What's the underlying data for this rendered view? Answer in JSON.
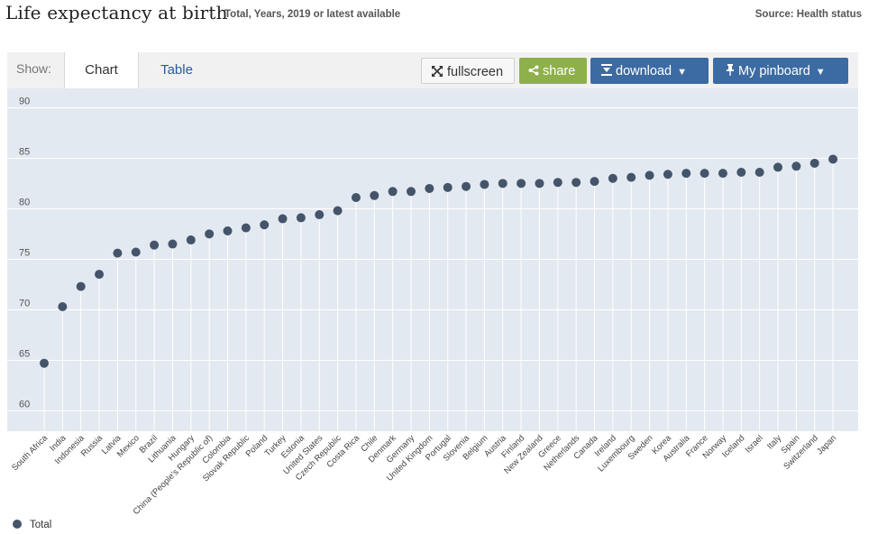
{
  "header": {
    "title": "Life expectancy at birth",
    "subtitle": "Total, Years, 2019 or latest available",
    "source": "Source: Health status"
  },
  "toolbar": {
    "show_label": "Show:",
    "tabs": [
      "Chart",
      "Table"
    ],
    "fullscreen_label": "fullscreen",
    "share_label": "share",
    "download_label": "download",
    "pinboard_label": "My pinboard"
  },
  "colors": {
    "plot_background": "#e3e9f0",
    "dot": "#44546a",
    "stem": "#ffffff",
    "accent": "#3c6ba3",
    "share": "#8eb04a"
  },
  "legend": {
    "label": "Total"
  },
  "chart_data": {
    "type": "scatter",
    "title": "Life expectancy at birth",
    "xlabel": "",
    "ylabel": "",
    "ylim": [
      58,
      91
    ],
    "yticks": [
      60,
      65,
      70,
      75,
      80,
      85,
      90
    ],
    "categories": [
      "South Africa",
      "India",
      "Indonesia",
      "Russia",
      "Latvia",
      "Mexico",
      "Brazil",
      "Lithuania",
      "Hungary",
      "China (People's Republic of)",
      "Colombia",
      "Slovak Republic",
      "Poland",
      "Turkey",
      "Estonia",
      "United States",
      "Czech Republic",
      "Costa Rica",
      "Chile",
      "Denmark",
      "Germany",
      "United Kingdom",
      "Portugal",
      "Slovenia",
      "Belgium",
      "Austria",
      "Finland",
      "New Zealand",
      "Greece",
      "Netherlands",
      "Canada",
      "Ireland",
      "Luxembourg",
      "Sweden",
      "Korea",
      "Australia",
      "France",
      "Norway",
      "Iceland",
      "Israel",
      "Italy",
      "Spain",
      "Switzerland",
      "Japan"
    ],
    "series": [
      {
        "name": "Total",
        "values": [
          64.0,
          69.6,
          71.6,
          72.8,
          74.9,
          75.0,
          75.7,
          75.8,
          76.2,
          76.8,
          77.1,
          77.4,
          77.7,
          78.3,
          78.4,
          78.7,
          79.1,
          80.4,
          80.6,
          81.0,
          81.0,
          81.3,
          81.4,
          81.5,
          81.7,
          81.8,
          81.8,
          81.8,
          81.9,
          81.9,
          82.0,
          82.3,
          82.4,
          82.6,
          82.7,
          82.8,
          82.8,
          82.8,
          82.9,
          82.9,
          83.4,
          83.5,
          83.8,
          84.2
        ]
      }
    ]
  }
}
